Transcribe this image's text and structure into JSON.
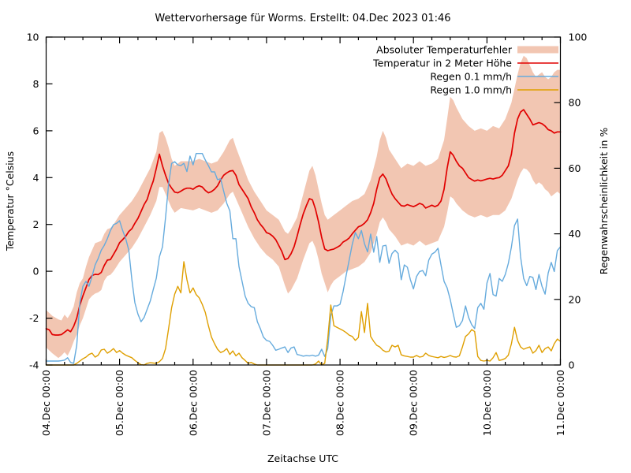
{
  "title": "Wettervorhersage für Worms. Erstellt: 04.Dec 2023 01:46",
  "chart_data": {
    "type": "line",
    "title": "Wettervorhersage für Worms. Erstellt: 04.Dec 2023 01:46",
    "xlabel": "Zeitachse UTC",
    "ylabel_left": "Temperatur °Celsius",
    "ylabel_right": "Regenwahrscheinlichkeit in %",
    "x_range_hours": [
      0,
      168
    ],
    "x_major_tick_hours": 24,
    "x_minor_tick_hours": 6,
    "x_tick_labels": [
      "04.Dec 00:00",
      "05.Dec 00:00",
      "06.Dec 00:00",
      "07.Dec 00:00",
      "08.Dec 00:00",
      "09.Dec 00:00",
      "10.Dec 00:00",
      "11.Dec 00:00"
    ],
    "y_left": {
      "min": -4,
      "max": 10,
      "step": 2,
      "unit": "°C"
    },
    "y_right": {
      "min": 0,
      "max": 100,
      "step": 20,
      "unit": "%"
    },
    "grid": false,
    "legend_position": "top-right-inside",
    "colors": {
      "band": "#f2c6b2",
      "temperature": "#e10000",
      "rain01": "#66abdd",
      "rain10": "#df9f00",
      "axis": "#000000"
    },
    "legend": [
      {
        "name": "temperature-error-band",
        "label": "Absoluter Temperaturfehler",
        "type": "band",
        "color": "#f2c6b2",
        "axis": "left",
        "series_key": "temp_error_band"
      },
      {
        "name": "temperature-line",
        "label": "Temperatur in 2 Meter Höhe",
        "type": "line",
        "color": "#e10000",
        "axis": "left",
        "series_key": "temperature_c"
      },
      {
        "name": "rain-01mm-line",
        "label": "Regen 0.1 mm/h",
        "type": "line",
        "color": "#66abdd",
        "axis": "right",
        "series_key": "rain_01mm_pct"
      },
      {
        "name": "rain-10mm-line",
        "label": "Regen 1.0 mm/h",
        "type": "line",
        "color": "#df9f00",
        "axis": "right",
        "series_key": "rain_10mm_pct"
      }
    ],
    "series": {
      "temperature_c": [
        -2.45,
        -2.5,
        -2.7,
        -2.72,
        -2.72,
        -2.7,
        -2.6,
        -2.5,
        -2.58,
        -2.35,
        -2.0,
        -1.45,
        -1.05,
        -0.7,
        -0.35,
        -0.18,
        -0.13,
        -0.14,
        -0.05,
        0.25,
        0.48,
        0.5,
        0.72,
        0.95,
        1.22,
        1.35,
        1.5,
        1.7,
        1.82,
        2.05,
        2.26,
        2.55,
        2.85,
        3.07,
        3.5,
        3.85,
        4.4,
        5.0,
        4.5,
        4.1,
        3.75,
        3.55,
        3.38,
        3.35,
        3.42,
        3.5,
        3.55,
        3.55,
        3.5,
        3.6,
        3.65,
        3.6,
        3.45,
        3.35,
        3.4,
        3.5,
        3.65,
        3.9,
        4.1,
        4.2,
        4.28,
        4.3,
        4.1,
        3.7,
        3.5,
        3.3,
        3.1,
        2.75,
        2.5,
        2.2,
        2.0,
        1.85,
        1.65,
        1.6,
        1.5,
        1.35,
        1.1,
        0.85,
        0.5,
        0.55,
        0.75,
        1.05,
        1.5,
        2.0,
        2.45,
        2.8,
        3.1,
        3.05,
        2.65,
        2.1,
        1.45,
        0.95,
        0.88,
        0.92,
        0.95,
        1.02,
        1.1,
        1.25,
        1.32,
        1.42,
        1.6,
        1.75,
        1.9,
        1.95,
        2.05,
        2.2,
        2.5,
        2.9,
        3.5,
        4.0,
        4.15,
        3.95,
        3.6,
        3.3,
        3.1,
        2.95,
        2.8,
        2.78,
        2.85,
        2.8,
        2.76,
        2.82,
        2.9,
        2.85,
        2.7,
        2.76,
        2.82,
        2.76,
        2.82,
        3.0,
        3.5,
        4.4,
        5.1,
        4.95,
        4.7,
        4.5,
        4.4,
        4.2,
        4.0,
        3.92,
        3.85,
        3.9,
        3.86,
        3.9,
        3.94,
        3.97,
        3.94,
        3.98,
        4.0,
        4.1,
        4.3,
        4.5,
        5.0,
        5.9,
        6.5,
        6.8,
        6.9,
        6.7,
        6.5,
        6.25,
        6.3,
        6.35,
        6.3,
        6.2,
        6.05,
        6.0,
        5.9,
        5.95,
        5.95
      ],
      "temp_error_band": [
        [
          0,
          -3.25,
          -1.65
        ],
        [
          2,
          -3.5,
          -1.9
        ],
        [
          4,
          -3.7,
          -2.05
        ],
        [
          5,
          -3.6,
          -2.1
        ],
        [
          6,
          -3.45,
          -1.85
        ],
        [
          7,
          -3.6,
          -2.0
        ],
        [
          8,
          -3.35,
          -1.8
        ],
        [
          9,
          -3.0,
          -1.5
        ],
        [
          10,
          -2.7,
          -0.9
        ],
        [
          11,
          -2.3,
          -0.5
        ],
        [
          12,
          -2.0,
          -0.3
        ],
        [
          13,
          -1.6,
          0.2
        ],
        [
          14,
          -1.2,
          0.6
        ],
        [
          15,
          -1.05,
          0.9
        ],
        [
          16,
          -0.95,
          1.2
        ],
        [
          17,
          -0.9,
          1.25
        ],
        [
          18,
          -0.8,
          1.3
        ],
        [
          19,
          -0.4,
          1.6
        ],
        [
          20,
          -0.2,
          1.8
        ],
        [
          21,
          -0.15,
          1.85
        ],
        [
          22,
          0.0,
          2.0
        ],
        [
          23,
          0.2,
          2.2
        ],
        [
          24,
          0.4,
          2.4
        ],
        [
          26,
          0.7,
          2.7
        ],
        [
          28,
          1.0,
          3.0
        ],
        [
          30,
          1.4,
          3.4
        ],
        [
          32,
          1.9,
          3.9
        ],
        [
          34,
          2.4,
          4.4
        ],
        [
          36,
          3.0,
          5.1
        ],
        [
          37,
          3.6,
          5.9
        ],
        [
          38,
          3.6,
          6.0
        ],
        [
          39,
          3.3,
          5.7
        ],
        [
          40,
          3.0,
          5.3
        ],
        [
          41,
          2.7,
          4.8
        ],
        [
          42,
          2.5,
          4.5
        ],
        [
          43,
          2.6,
          4.6
        ],
        [
          44,
          2.7,
          4.7
        ],
        [
          46,
          2.65,
          4.7
        ],
        [
          48,
          2.6,
          4.7
        ],
        [
          50,
          2.7,
          4.8
        ],
        [
          52,
          2.6,
          4.7
        ],
        [
          54,
          2.5,
          4.6
        ],
        [
          56,
          2.6,
          4.7
        ],
        [
          58,
          2.9,
          5.1
        ],
        [
          60,
          3.3,
          5.6
        ],
        [
          61,
          3.4,
          5.7
        ],
        [
          62,
          3.1,
          5.3
        ],
        [
          64,
          2.5,
          4.6
        ],
        [
          66,
          1.9,
          3.9
        ],
        [
          68,
          1.4,
          3.4
        ],
        [
          70,
          1.0,
          3.0
        ],
        [
          72,
          0.7,
          2.6
        ],
        [
          74,
          0.5,
          2.4
        ],
        [
          76,
          0.2,
          2.2
        ],
        [
          78,
          -0.6,
          1.7
        ],
        [
          79,
          -0.95,
          1.6
        ],
        [
          80,
          -0.8,
          1.8
        ],
        [
          82,
          -0.3,
          2.3
        ],
        [
          84,
          0.5,
          3.3
        ],
        [
          86,
          1.2,
          4.3
        ],
        [
          87,
          1.3,
          4.5
        ],
        [
          88,
          1.0,
          4.1
        ],
        [
          89,
          0.5,
          3.5
        ],
        [
          90,
          -0.1,
          2.9
        ],
        [
          91,
          -0.5,
          2.4
        ],
        [
          92,
          -0.9,
          2.2
        ],
        [
          93,
          -0.6,
          2.3
        ],
        [
          94,
          -0.4,
          2.4
        ],
        [
          96,
          -0.2,
          2.6
        ],
        [
          98,
          0.0,
          2.8
        ],
        [
          100,
          0.1,
          3.0
        ],
        [
          102,
          0.2,
          3.1
        ],
        [
          104,
          0.4,
          3.3
        ],
        [
          106,
          0.8,
          3.9
        ],
        [
          108,
          1.6,
          4.9
        ],
        [
          109,
          2.1,
          5.6
        ],
        [
          110,
          2.3,
          6.0
        ],
        [
          111,
          2.1,
          5.7
        ],
        [
          112,
          1.8,
          5.2
        ],
        [
          114,
          1.5,
          4.8
        ],
        [
          116,
          1.1,
          4.4
        ],
        [
          118,
          1.2,
          4.6
        ],
        [
          120,
          1.1,
          4.5
        ],
        [
          122,
          1.3,
          4.7
        ],
        [
          124,
          1.1,
          4.5
        ],
        [
          126,
          1.2,
          4.6
        ],
        [
          128,
          1.3,
          4.8
        ],
        [
          130,
          1.9,
          5.6
        ],
        [
          131,
          2.5,
          6.5
        ],
        [
          132,
          3.2,
          7.45
        ],
        [
          133,
          3.1,
          7.3
        ],
        [
          134,
          2.9,
          7.0
        ],
        [
          136,
          2.6,
          6.5
        ],
        [
          138,
          2.4,
          6.2
        ],
        [
          140,
          2.3,
          6.0
        ],
        [
          142,
          2.4,
          6.1
        ],
        [
          144,
          2.3,
          6.0
        ],
        [
          146,
          2.4,
          6.2
        ],
        [
          148,
          2.4,
          6.1
        ],
        [
          150,
          2.6,
          6.5
        ],
        [
          152,
          3.1,
          7.2
        ],
        [
          154,
          3.9,
          8.4
        ],
        [
          155,
          4.2,
          8.9
        ],
        [
          156,
          4.4,
          9.2
        ],
        [
          157,
          4.35,
          9.1
        ],
        [
          158,
          4.2,
          8.8
        ],
        [
          159,
          3.9,
          8.5
        ],
        [
          160,
          3.7,
          8.3
        ],
        [
          161,
          3.8,
          8.4
        ],
        [
          162,
          3.7,
          8.5
        ],
        [
          163,
          3.5,
          8.3
        ],
        [
          164,
          3.4,
          8.2
        ],
        [
          165,
          3.2,
          8.3
        ],
        [
          166,
          3.3,
          8.5
        ],
        [
          167,
          3.4,
          8.6
        ],
        [
          168,
          3.3,
          8.6
        ]
      ],
      "rain_01mm_pct": [
        1.2,
        1.2,
        1.2,
        1.2,
        1.2,
        1.3,
        1.5,
        2.2,
        0.8,
        0.5,
        6,
        19,
        24,
        25.5,
        24,
        27,
        30.5,
        32.5,
        35,
        36.5,
        38.5,
        41,
        42.8,
        43.2,
        44,
        41,
        38.5,
        35,
        26,
        19,
        15.5,
        13.2,
        14.5,
        17,
        19.5,
        23,
        26.5,
        33,
        36,
        45,
        55,
        61.5,
        62,
        61,
        60.8,
        61.5,
        59,
        63.7,
        61,
        64.5,
        64.5,
        64.5,
        62.5,
        60.8,
        58.9,
        58.9,
        56.5,
        56.8,
        53,
        49.3,
        47,
        38.5,
        38.5,
        30,
        25.5,
        21,
        18.8,
        17.8,
        17.5,
        13.2,
        11,
        8.5,
        7.5,
        7.2,
        6,
        4.5,
        4.8,
        5.2,
        5.5,
        3.8,
        5.2,
        5.5,
        3.2,
        3,
        2.7,
        2.9,
        2.8,
        3,
        2.7,
        3,
        4.8,
        2.6,
        5,
        15,
        18,
        18,
        18.5,
        22.4,
        27.2,
        32,
        36.8,
        40.4,
        38.5,
        41,
        37,
        34.5,
        39.9,
        34.4,
        39.2,
        31.3,
        36.3,
        36.5,
        31,
        34,
        35,
        34,
        26,
        30.5,
        29.8,
        26,
        23.2,
        27,
        28.5,
        28.8,
        27.2,
        32,
        33.8,
        34.4,
        35.6,
        30.5,
        25.5,
        23.5,
        20,
        15.5,
        11.5,
        12,
        13.5,
        18,
        14.5,
        12.3,
        11.1,
        17.5,
        18.8,
        17,
        25,
        27.9,
        21.5,
        21,
        26.4,
        25.5,
        27.6,
        31,
        36,
        42.5,
        44.5,
        33,
        26.4,
        24.2,
        27,
        26.7,
        23,
        27.6,
        24,
        21.6,
        28,
        31.3,
        28.5,
        34.9,
        36
      ],
      "rain_10mm_pct": [
        0,
        0,
        0,
        0,
        0,
        0,
        0,
        0,
        0,
        0,
        0.5,
        1.2,
        1.9,
        2.4,
        3.2,
        3.6,
        2.4,
        3.0,
        4.6,
        4.8,
        3.6,
        4.2,
        5.0,
        3.8,
        4.4,
        3.6,
        3.0,
        2.6,
        2.2,
        1.4,
        0.7,
        0.1,
        0,
        0.5,
        0.7,
        0.6,
        0.5,
        1.0,
        2.0,
        5.0,
        11,
        17.5,
        21.6,
        24,
        22,
        31.5,
        26,
        22,
        23.5,
        21.5,
        20.5,
        18.5,
        16,
        12,
        8.5,
        6.5,
        4.8,
        3.8,
        4.2,
        5.0,
        3.2,
        4.3,
        2.8,
        3.6,
        2.2,
        1.4,
        0.5,
        0.8,
        0.3,
        0,
        0,
        0,
        0,
        0,
        0,
        0,
        0,
        0,
        0,
        0,
        0,
        0,
        0,
        0,
        0,
        0,
        0,
        0,
        0.3,
        1.2,
        0,
        0.5,
        8,
        18.3,
        12,
        11.5,
        11,
        10.5,
        9.9,
        9.1,
        8.7,
        7.5,
        8.4,
        16.3,
        9.9,
        18.8,
        8.7,
        7.2,
        6.0,
        5.5,
        4.5,
        4.0,
        4.2,
        6.0,
        5.5,
        6.0,
        3.1,
        2.8,
        2.6,
        2.4,
        2.4,
        2.9,
        2.4,
        2.6,
        3.6,
        2.9,
        2.6,
        2.4,
        2.2,
        2.6,
        2.3,
        2.5,
        2.9,
        2.5,
        2.4,
        2.8,
        5.5,
        8.7,
        9.5,
        10.8,
        10.2,
        2.6,
        1.4,
        1.2,
        1.4,
        1.2,
        2.2,
        3.8,
        1.4,
        1.6,
        2.0,
        3.0,
        6.5,
        11.5,
        7.5,
        5.5,
        4.8,
        5.2,
        5.5,
        3.6,
        4.4,
        6.0,
        3.8,
        5.0,
        5.5,
        4.3,
        6.5,
        7.9,
        7.2
      ]
    }
  }
}
